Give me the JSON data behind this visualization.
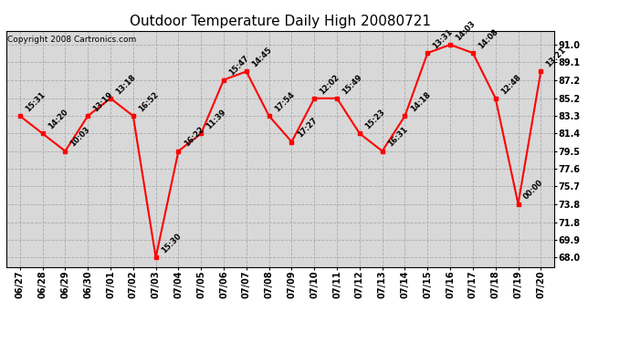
{
  "title": "Outdoor Temperature Daily High 20080721",
  "copyright": "Copyright 2008 Cartronics.com",
  "x_labels": [
    "06/27",
    "06/28",
    "06/29",
    "06/30",
    "07/01",
    "07/02",
    "07/03",
    "07/04",
    "07/05",
    "07/06",
    "07/07",
    "07/08",
    "07/09",
    "07/10",
    "07/11",
    "07/12",
    "07/13",
    "07/14",
    "07/15",
    "07/16",
    "07/17",
    "07/18",
    "07/19",
    "07/20"
  ],
  "y_values": [
    83.3,
    81.4,
    79.5,
    83.3,
    85.2,
    83.3,
    68.0,
    79.5,
    81.4,
    87.2,
    88.1,
    83.3,
    80.5,
    85.2,
    85.2,
    81.4,
    79.5,
    83.3,
    90.1,
    91.0,
    90.1,
    85.2,
    73.8,
    88.1
  ],
  "time_labels": [
    "15:31",
    "14:20",
    "10:03",
    "13:19",
    "13:18",
    "16:52",
    "15:30",
    "16:22",
    "11:39",
    "15:47",
    "14:45",
    "17:54",
    "17:27",
    "12:02",
    "15:49",
    "15:23",
    "16:31",
    "14:18",
    "13:31",
    "14:03",
    "14:08",
    "12:48",
    "00:00",
    "13:21"
  ],
  "y_ticks": [
    68.0,
    69.9,
    71.8,
    73.8,
    75.7,
    77.6,
    79.5,
    81.4,
    83.3,
    85.2,
    87.2,
    89.1,
    91.0
  ],
  "ylim": [
    67.0,
    92.5
  ],
  "xlim": [
    -0.6,
    23.6
  ],
  "line_color": "red",
  "marker_color": "red",
  "bg_color": "#ffffff",
  "plot_bg_color": "#d8d8d8",
  "grid_color": "#aaaaaa",
  "title_fontsize": 11,
  "label_fontsize": 6,
  "tick_fontsize": 7,
  "copyright_fontsize": 6.5
}
